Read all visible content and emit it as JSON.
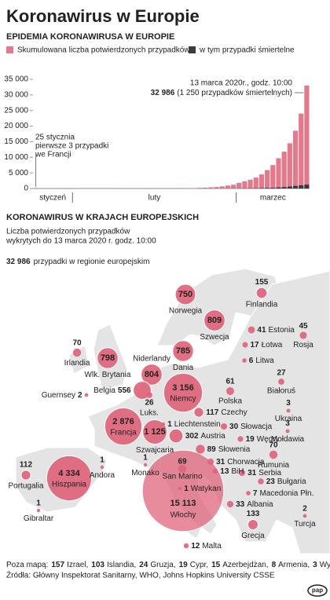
{
  "header": {
    "title": "Koronawirus w Europie"
  },
  "chart_data": {
    "type": "bar",
    "title": "EPIDEMIA KORONAWIRUSA W EUROPIE",
    "categories": [
      null,
      null,
      null,
      null,
      null,
      null,
      null,
      null,
      null,
      null,
      null,
      null,
      null,
      null,
      null,
      null,
      null,
      null,
      null,
      null,
      null,
      null,
      null,
      null,
      null,
      null,
      null,
      null,
      null,
      null,
      null,
      null,
      null,
      null,
      null,
      null,
      null,
      null,
      null,
      null,
      null,
      null,
      null,
      null,
      null,
      null,
      null,
      null,
      null
    ],
    "month_labels": [
      "styczeń",
      "luty",
      "marzec"
    ],
    "series": [
      {
        "name": "Skumulowana liczba potwierdzonych przypadków",
        "color": "#e5788b",
        "values": [
          3,
          3,
          4,
          8,
          10,
          10,
          15,
          21,
          22,
          23,
          26,
          27,
          28,
          29,
          35,
          38,
          40,
          42,
          44,
          45,
          46,
          46,
          46,
          46,
          46,
          46,
          47,
          63,
          116,
          200,
          270,
          370,
          470,
          680,
          950,
          1200,
          1800,
          2300,
          2800,
          3500,
          4500,
          5900,
          7500,
          9700,
          11800,
          14500,
          18500,
          24000,
          32986
        ]
      },
      {
        "name": "w tym przypadki śmiertelne",
        "color": "#3b3b3b",
        "values": [
          0,
          0,
          0,
          0,
          0,
          0,
          0,
          0,
          0,
          0,
          0,
          0,
          0,
          0,
          0,
          0,
          0,
          0,
          0,
          0,
          0,
          1,
          1,
          1,
          1,
          1,
          1,
          2,
          3,
          5,
          7,
          11,
          12,
          17,
          21,
          29,
          34,
          52,
          79,
          107,
          148,
          197,
          234,
          366,
          463,
          631,
          827,
          1016,
          1250
        ]
      }
    ],
    "ylim": [
      0,
      35000
    ],
    "yticks": [
      0,
      {
        "value": 5000,
        "label": "5 000"
      },
      {
        "value": 10000,
        "label": "10 000"
      },
      {
        "value": 15000,
        "label": "15 000"
      },
      {
        "value": 20000,
        "label": "20 000"
      },
      {
        "value": 25000,
        "label": "25 000"
      },
      {
        "value": 30000,
        "label": "30 000"
      },
      {
        "value": 35000,
        "label": "35 000"
      }
    ],
    "annotations": {
      "first": [
        "25 stycznia",
        "pierwsze 3 przypadki",
        "we Francji"
      ],
      "last": [
        "13 marca 2020r., godz. 10:00",
        "32 986",
        "(1 250 przypadków śmiertelnych)"
      ]
    }
  },
  "map": {
    "title": "KORONAWIRUS W KRAJACH EUROPEJSKICH",
    "subtitle": [
      "Liczba potwierdzonych przypadków",
      "wykrytych do 13 marca 2020 r. godz. 10:00"
    ],
    "total": {
      "value": 32986,
      "label": "32 986",
      "text": "przypadki w regionie europejskim"
    },
    "color": "#e0647b",
    "countries": [
      {
        "name": "Norwegia",
        "value": 750
      },
      {
        "name": "Finlandia",
        "value": 155
      },
      {
        "name": "Szwecja",
        "value": 809
      },
      {
        "name": "Estonia",
        "value": 41
      },
      {
        "name": "Rosja",
        "value": 45
      },
      {
        "name": "Łotwa",
        "value": 17
      },
      {
        "name": "Irlandia",
        "value": 70
      },
      {
        "name": "Wlk. Brytania",
        "value": 798
      },
      {
        "name": "Dania",
        "value": 785
      },
      {
        "name": "Litwa",
        "value": 6
      },
      {
        "name": "Niderlandy",
        "value": 804
      },
      {
        "name": "Białoruś",
        "value": 27
      },
      {
        "name": "Belgia",
        "value": 556
      },
      {
        "name": "Guernsey",
        "value": 2
      },
      {
        "name": "Polska",
        "value": 61
      },
      {
        "name": "Niemcy",
        "value": 3156,
        "label": "3 156"
      },
      {
        "name": "Luks.",
        "value": 26
      },
      {
        "name": "Ukraina",
        "value": 3
      },
      {
        "name": "Czechy",
        "value": 117
      },
      {
        "name": "Francja",
        "value": 2876,
        "label": "2 876"
      },
      {
        "name": "Liechtenstein",
        "value": 1
      },
      {
        "name": "Słowacja",
        "value": 30
      },
      {
        "name": "Mołdawia",
        "value": 3
      },
      {
        "name": "Szwajcaria",
        "value": 1125,
        "label": "1 125"
      },
      {
        "name": "Austria",
        "value": 302
      },
      {
        "name": "Węgry",
        "value": 19
      },
      {
        "name": "Słowenia",
        "value": 89
      },
      {
        "name": "Rumunia",
        "value": 70
      },
      {
        "name": "Chorwacja",
        "value": 31
      },
      {
        "name": "Andora",
        "value": 1
      },
      {
        "name": "Portugalia",
        "value": 112
      },
      {
        "name": "Hiszpania",
        "value": 4334,
        "label": "4 334"
      },
      {
        "name": "Monako",
        "value": 1
      },
      {
        "name": "San Marino",
        "value": 69
      },
      {
        "name": "BiH",
        "value": 13
      },
      {
        "name": "Serbia",
        "value": 31
      },
      {
        "name": "Bułgaria",
        "value": 23
      },
      {
        "name": "Watykan",
        "value": 1
      },
      {
        "name": "Włochy",
        "value": 15113,
        "label": "15 113"
      },
      {
        "name": "Macedonia Płn.",
        "value": 7
      },
      {
        "name": "Albania",
        "value": 33
      },
      {
        "name": "Gibraltar",
        "value": 1
      },
      {
        "name": "Turcja",
        "value": 2
      },
      {
        "name": "Grecja",
        "value": 133
      },
      {
        "name": "Malta",
        "value": 12
      }
    ]
  },
  "footer": {
    "outside_prefix": "Poza mapą:",
    "outside": [
      {
        "value": 157,
        "name": "Izrael,"
      },
      {
        "value": 103,
        "name": "Islandia,"
      },
      {
        "value": 24,
        "name": "Gruzja,"
      },
      {
        "value": 19,
        "name": "Cypr,"
      },
      {
        "value": 15,
        "name": "Azerbejdżan,"
      },
      {
        "value": 8,
        "name": "Armenia,"
      },
      {
        "value": 3,
        "name": "Wyspy Owcze"
      }
    ],
    "sources": "Źródła: Główny Inspektorat Sanitarny, WHO, Johns Hopkins University CSSE",
    "logo": "pap"
  }
}
